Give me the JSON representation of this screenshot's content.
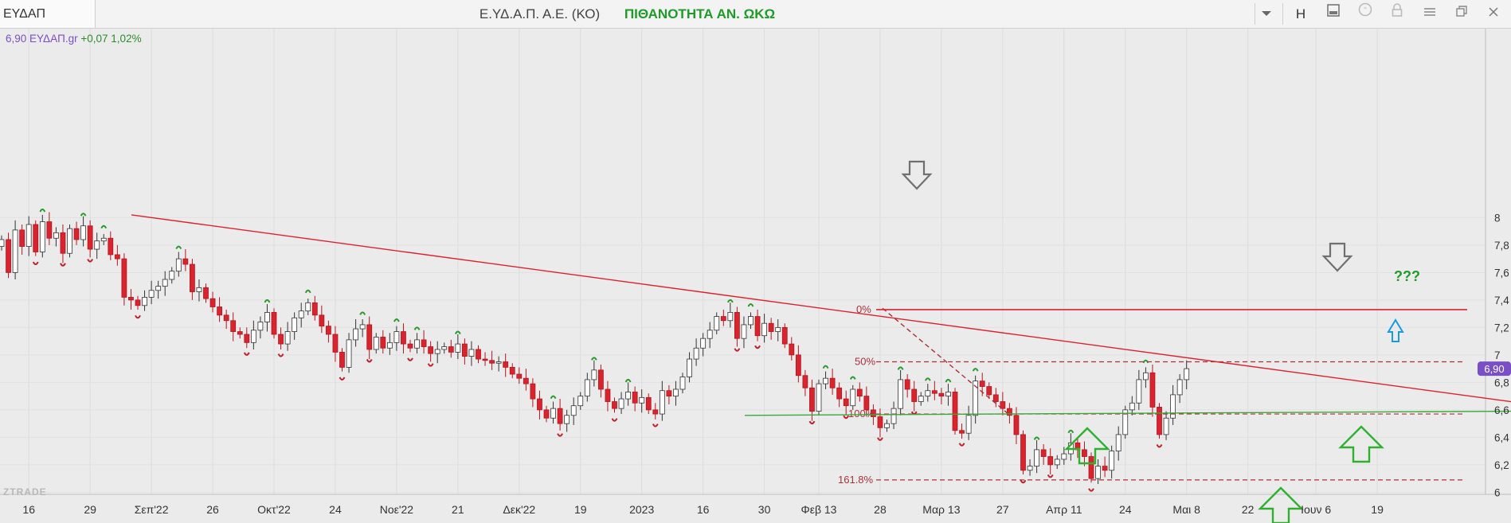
{
  "window": {
    "symbol": "ΕΥΔΑΠ",
    "title": "Ε.ΥΔ.Α.Π. Α.Ε. (ΚΟ)",
    "title_accent": "ΠΙΘΑΝΟΤΗΤΑ ΑΝ. ΩΚΩ",
    "toolbar": {
      "h_label": "H"
    }
  },
  "quote": {
    "price": "6,90",
    "symbol": "ΕΥΔΑΠ.gr",
    "change": "+0,07",
    "change_pct": "1,02%"
  },
  "watermark": "ZTRADE",
  "colors": {
    "up": "#ffffff",
    "down": "#d9232e",
    "trend": "#d9232e",
    "fib": "#a8323a",
    "support": "#3aa83a",
    "arrow_green": "#2fb12f",
    "arrow_gray": "#707070",
    "arrow_blue": "#1a9be0",
    "price_tag": "#7a4fc6"
  },
  "chart_data": {
    "type": "candlestick",
    "y_axis": {
      "ticks": [
        "8",
        "7,8",
        "7,6",
        "7,4",
        "7,2",
        "7",
        "6,8",
        "6,6",
        "6,4",
        "6,2",
        "6"
      ],
      "ylim": [
        5.95,
        8.15
      ],
      "side": "right"
    },
    "x_axis": {
      "tick_labels": [
        "16",
        "29",
        "Σεπ'22",
        "26",
        "Οκτ'22",
        "24",
        "Νοε'22",
        "21",
        "Δεκ'22",
        "19",
        "2023",
        "16",
        "30",
        "Φεβ 13",
        "28",
        "Μαρ 13",
        "27",
        "Απρ 11",
        "24",
        "Μαι 8",
        "22",
        "Ιουν 6",
        "19"
      ],
      "tick_index": [
        4,
        13,
        22,
        31,
        40,
        49,
        58,
        67,
        76,
        85,
        94,
        103,
        112,
        120,
        129,
        138,
        147,
        156,
        165,
        174,
        183,
        193,
        202
      ]
    },
    "last_price": "6,90",
    "closes": [
      7.84,
      7.6,
      7.91,
      7.79,
      7.95,
      7.75,
      7.97,
      7.85,
      7.89,
      7.74,
      7.92,
      7.84,
      7.94,
      7.77,
      7.83,
      7.85,
      7.73,
      7.7,
      7.42,
      7.4,
      7.36,
      7.42,
      7.47,
      7.5,
      7.55,
      7.61,
      7.7,
      7.66,
      7.46,
      7.49,
      7.41,
      7.35,
      7.29,
      7.25,
      7.17,
      7.15,
      7.09,
      7.18,
      7.24,
      7.31,
      7.15,
      7.08,
      7.17,
      7.27,
      7.32,
      7.38,
      7.29,
      7.21,
      7.15,
      7.02,
      6.91,
      7.11,
      7.19,
      7.22,
      7.04,
      7.13,
      7.05,
      7.09,
      7.17,
      7.08,
      7.05,
      7.11,
      7.06,
      7.01,
      7.04,
      7.06,
      7.02,
      7.08,
      6.99,
      7.04,
      6.97,
      6.96,
      6.94,
      6.95,
      6.91,
      6.86,
      6.83,
      6.79,
      6.68,
      6.6,
      6.54,
      6.61,
      6.5,
      6.56,
      6.63,
      6.7,
      6.82,
      6.89,
      6.75,
      6.66,
      6.61,
      6.68,
      6.73,
      6.65,
      6.69,
      6.6,
      6.57,
      6.74,
      6.7,
      6.75,
      6.84,
      6.97,
      7.05,
      7.12,
      7.18,
      7.28,
      7.25,
      7.31,
      7.12,
      7.22,
      7.28,
      7.14,
      7.23,
      7.17,
      7.2,
      7.08,
      7.0,
      6.85,
      6.76,
      6.59,
      6.79,
      6.83,
      6.76,
      6.68,
      6.63,
      6.75,
      6.7,
      6.6,
      6.55,
      6.47,
      6.5,
      6.61,
      6.82,
      6.75,
      6.66,
      6.7,
      6.74,
      6.72,
      6.7,
      6.73,
      6.45,
      6.43,
      6.56,
      6.81,
      6.77,
      6.71,
      6.66,
      6.61,
      6.56,
      6.42,
      6.16,
      6.19,
      6.31,
      6.26,
      6.2,
      6.24,
      6.28,
      6.36,
      6.31,
      6.26,
      6.1,
      6.19,
      6.16,
      6.3,
      6.42,
      6.6,
      6.65,
      6.82,
      6.87,
      6.62,
      6.42,
      6.54,
      6.71,
      6.82,
      6.9
    ]
  },
  "annotations": {
    "fib_0": "0%",
    "fib_50": "50%",
    "fib_100": "100%",
    "fib_1618": "161.8%",
    "question": "???"
  }
}
